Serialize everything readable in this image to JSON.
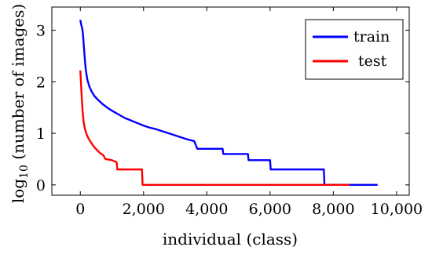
{
  "chart_data": {
    "type": "line",
    "title": "",
    "xlabel": "individual (class)",
    "ylabel_main": "log",
    "ylabel_sub": "10",
    "ylabel_rest": " (number of images)",
    "xlim": [
      -900,
      10400
    ],
    "ylim": [
      -0.2,
      3.45
    ],
    "xticks": [
      0,
      2000,
      4000,
      6000,
      8000,
      10000
    ],
    "xtick_labels": [
      "0",
      "2,000",
      "4,000",
      "6,000",
      "8,000",
      "10,000"
    ],
    "yticks": [
      0,
      1,
      2,
      3
    ],
    "ytick_labels": [
      "0",
      "1",
      "2",
      "3"
    ],
    "legend_position": "top-right",
    "series": [
      {
        "name": "train",
        "color": "#0000ff",
        "points": [
          [
            0,
            3.2
          ],
          [
            25,
            3.12
          ],
          [
            55,
            3.05
          ],
          [
            80,
            2.95
          ],
          [
            105,
            2.75
          ],
          [
            135,
            2.5
          ],
          [
            170,
            2.25
          ],
          [
            220,
            2.05
          ],
          [
            280,
            1.92
          ],
          [
            350,
            1.82
          ],
          [
            450,
            1.72
          ],
          [
            560,
            1.65
          ],
          [
            700,
            1.57
          ],
          [
            850,
            1.5
          ],
          [
            1000,
            1.44
          ],
          [
            1200,
            1.37
          ],
          [
            1400,
            1.3
          ],
          [
            1600,
            1.25
          ],
          [
            1800,
            1.2
          ],
          [
            2000,
            1.15
          ],
          [
            2200,
            1.11
          ],
          [
            2400,
            1.08
          ],
          [
            2600,
            1.04
          ],
          [
            2800,
            1.0
          ],
          [
            3000,
            0.96
          ],
          [
            3200,
            0.92
          ],
          [
            3400,
            0.88
          ],
          [
            3600,
            0.85
          ],
          [
            3700,
            0.7
          ],
          [
            4500,
            0.7
          ],
          [
            4520,
            0.6
          ],
          [
            5300,
            0.6
          ],
          [
            5320,
            0.48
          ],
          [
            6000,
            0.48
          ],
          [
            6020,
            0.3
          ],
          [
            7700,
            0.3
          ],
          [
            7720,
            0.0
          ],
          [
            9400,
            0.0
          ]
        ]
      },
      {
        "name": "test",
        "color": "#ff0000",
        "points": [
          [
            0,
            2.22
          ],
          [
            20,
            2.0
          ],
          [
            45,
            1.7
          ],
          [
            70,
            1.45
          ],
          [
            100,
            1.25
          ],
          [
            140,
            1.1
          ],
          [
            200,
            0.98
          ],
          [
            260,
            0.9
          ],
          [
            340,
            0.82
          ],
          [
            420,
            0.75
          ],
          [
            520,
            0.68
          ],
          [
            620,
            0.62
          ],
          [
            720,
            0.58
          ],
          [
            800,
            0.5
          ],
          [
            1000,
            0.48
          ],
          [
            1150,
            0.44
          ],
          [
            1170,
            0.3
          ],
          [
            1950,
            0.3
          ],
          [
            1970,
            0.0
          ],
          [
            8500,
            0.0
          ]
        ]
      }
    ]
  }
}
